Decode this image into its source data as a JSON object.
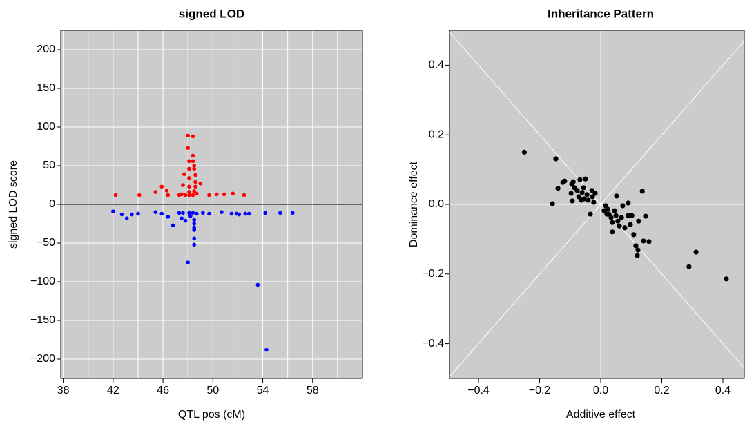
{
  "chart_data": [
    {
      "type": "scatter",
      "title": "signed LOD",
      "xlabel": "QTL pos (cM)",
      "ylabel": "signed LOD score",
      "xlim": [
        37.8,
        62
      ],
      "ylim": [
        -225,
        225
      ],
      "xticks": [
        38,
        42,
        46,
        50,
        54,
        58
      ],
      "yticks": [
        {
          "value": -200,
          "label": "−200"
        },
        {
          "value": -150,
          "label": "−150"
        },
        {
          "value": -100,
          "label": "−100"
        },
        {
          "value": -50,
          "label": "−50"
        },
        0,
        50,
        100,
        150,
        200
      ],
      "xgrid": [
        38,
        40,
        42,
        44,
        46,
        48,
        50,
        52,
        54,
        56,
        58,
        60,
        62
      ],
      "hline": 0,
      "background": "#cccccc",
      "series": [
        {
          "color": "#ff0000",
          "x": [
            42.2,
            44.1,
            45.4,
            45.9,
            46.3,
            46.4,
            47.3,
            47.6,
            47.7,
            47.8,
            48.0,
            48.0,
            48.1,
            48.1,
            48.1,
            48.1,
            48.1,
            48.1,
            48.4,
            48.4,
            48.4,
            48.5,
            48.5,
            48.6,
            48.6,
            48.6,
            48.5,
            48.4,
            48.7,
            49.0,
            49.7,
            50.3,
            50.9,
            51.6,
            52.5,
            47.5
          ],
          "values": [
            12,
            12,
            16,
            23,
            18,
            12,
            12,
            25,
            39,
            12,
            89,
            73,
            56,
            46,
            34,
            23,
            16,
            12,
            88,
            63,
            56,
            50,
            46,
            38,
            29,
            23,
            17,
            12,
            14,
            27,
            12,
            13,
            13,
            14,
            12,
            13
          ]
        },
        {
          "color": "#0000ff",
          "x": [
            42.0,
            42.7,
            43.1,
            43.5,
            44.0,
            45.4,
            45.9,
            46.4,
            46.8,
            47.3,
            47.5,
            47.6,
            47.8,
            48.0,
            48.1,
            48.2,
            48.4,
            48.5,
            48.5,
            48.5,
            48.5,
            48.5,
            48.5,
            48.7,
            49.2,
            49.7,
            50.7,
            51.5,
            51.9,
            52.1,
            52.6,
            52.9,
            53.6,
            54.2,
            54.3,
            55.4,
            56.4
          ],
          "values": [
            -9,
            -13,
            -18,
            -13,
            -12,
            -10,
            -12,
            -16,
            -27,
            -11,
            -18,
            -11,
            -21,
            -75,
            -11,
            -15,
            -11,
            -20,
            -25,
            -33,
            -44,
            -52,
            -30,
            -12,
            -11,
            -12,
            -10,
            -12,
            -12,
            -13,
            -12,
            -12,
            -104,
            -11,
            -188,
            -11,
            -11
          ]
        }
      ]
    },
    {
      "type": "scatter",
      "title": "Inheritance Pattern",
      "xlabel": "Additive effect",
      "ylabel": "Dominance effect",
      "xlim": [
        -0.495,
        0.47
      ],
      "ylim": [
        -0.5,
        0.5
      ],
      "xticks": [
        {
          "value": -0.4,
          "label": "−0.4"
        },
        {
          "value": -0.2,
          "label": "−0.2"
        },
        {
          "value": 0,
          "label": "0.0"
        },
        0.2,
        0.4
      ],
      "yticks": [
        {
          "value": -0.4,
          "label": "−0.4"
        },
        {
          "value": -0.2,
          "label": "−0.2"
        },
        {
          "value": 0,
          "label": "0.0"
        },
        0.2,
        0.4
      ],
      "xgrid": [
        0
      ],
      "ygrid": [
        0
      ],
      "diagonals": true,
      "background": "#cccccc",
      "series": [
        {
          "color": "#000000",
          "x": [
            -0.25,
            -0.147,
            -0.158,
            -0.14,
            -0.124,
            -0.118,
            -0.095,
            -0.09,
            -0.097,
            -0.093,
            -0.086,
            -0.068,
            -0.05,
            -0.061,
            -0.056,
            -0.045,
            -0.041,
            -0.034,
            -0.027,
            -0.023,
            -0.018,
            -0.063,
            -0.072,
            -0.054,
            -0.077,
            -0.029,
            0.016,
            0.023,
            0.027,
            0.034,
            0.038,
            0.045,
            0.05,
            0.052,
            0.038,
            0.056,
            0.061,
            0.068,
            0.072,
            0.079,
            0.09,
            0.09,
            0.097,
            0.102,
            0.108,
            0.115,
            0.12,
            0.122,
            0.136,
            0.14,
            0.147,
            0.158,
            0.124,
            0.289,
            0.312,
            0.411,
            0.011,
            0.02
          ],
          "values": [
            0.15,
            0.131,
            0.002,
            0.046,
            0.063,
            0.067,
            0.058,
            0.065,
            0.032,
            0.01,
            0.048,
            0.071,
            0.073,
            0.034,
            0.048,
            0.028,
            0.012,
            -0.028,
            0.022,
            0.006,
            0.032,
            0.012,
            0.022,
            0.016,
            0.04,
            0.04,
            -0.004,
            -0.014,
            -0.028,
            -0.038,
            -0.052,
            -0.018,
            -0.032,
            0.024,
            -0.079,
            -0.048,
            -0.062,
            -0.038,
            -0.004,
            -0.067,
            0.004,
            -0.032,
            -0.058,
            -0.032,
            -0.087,
            -0.119,
            -0.147,
            -0.131,
            0.038,
            -0.105,
            -0.034,
            -0.107,
            -0.048,
            -0.179,
            -0.137,
            -0.214,
            -0.018,
            -0.028
          ]
        }
      ]
    }
  ]
}
